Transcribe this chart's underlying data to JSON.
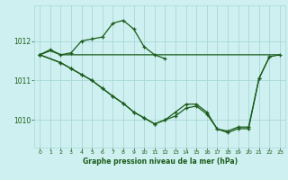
{
  "title": "Graphe pression niveau de la mer (hPa)",
  "bg_color": "#cff0f0",
  "grid_color": "#a8d8d8",
  "line_color": "#1a5c1a",
  "ylim": [
    1009.3,
    1012.9
  ],
  "yticks": [
    1010,
    1011,
    1012
  ],
  "xticks": [
    0,
    1,
    2,
    3,
    4,
    5,
    6,
    7,
    8,
    9,
    10,
    11,
    12,
    13,
    14,
    15,
    16,
    17,
    18,
    19,
    20,
    21,
    22,
    23
  ],
  "line1": {
    "x": [
      0,
      1,
      2,
      3,
      4,
      5,
      6,
      7,
      8,
      9,
      10,
      11,
      12,
      13,
      14,
      15,
      16,
      17,
      18,
      19,
      20,
      21,
      22,
      23
    ],
    "y": [
      1011.65,
      1011.75,
      1011.65,
      1011.65,
      1011.65,
      1011.65,
      1011.65,
      1011.65,
      1011.65,
      1011.65,
      1011.65,
      1011.65,
      1011.65,
      1011.65,
      1011.65,
      1011.65,
      1011.65,
      1011.65,
      1011.65,
      1011.65,
      1011.65,
      1011.65,
      1011.65,
      1011.65
    ],
    "markers": false
  },
  "line2": {
    "x": [
      0,
      1,
      2,
      3,
      4,
      5,
      6,
      7,
      8,
      9,
      10,
      11,
      12
    ],
    "y": [
      1011.65,
      1011.78,
      1011.65,
      1011.7,
      1012.0,
      1012.05,
      1012.1,
      1012.45,
      1012.52,
      1012.3,
      1011.85,
      1011.65,
      1011.55
    ],
    "markers": true
  },
  "line3": {
    "x": [
      0,
      2,
      3,
      4,
      5,
      6,
      7,
      8,
      9,
      10,
      11,
      12,
      13,
      14,
      15,
      16,
      17,
      18,
      19,
      20,
      21,
      22
    ],
    "y": [
      1011.65,
      1011.45,
      1011.3,
      1011.15,
      1011.0,
      1010.8,
      1010.6,
      1010.42,
      1010.2,
      1010.05,
      1009.9,
      1010.0,
      1010.1,
      1010.3,
      1010.35,
      1010.15,
      1009.77,
      1009.72,
      1009.82,
      1009.82,
      1011.05,
      1011.6
    ],
    "markers": true
  },
  "line4": {
    "x": [
      0,
      2,
      3,
      4,
      5,
      6,
      7,
      8,
      9,
      10,
      11,
      12,
      13,
      14,
      15,
      16,
      17,
      18,
      19,
      20,
      21,
      22,
      23
    ],
    "y": [
      1011.65,
      1011.45,
      1011.3,
      1011.15,
      1011.0,
      1010.8,
      1010.6,
      1010.42,
      1010.2,
      1010.05,
      1009.9,
      1010.0,
      1010.2,
      1010.4,
      1010.4,
      1010.2,
      1009.77,
      1009.68,
      1009.78,
      1009.78,
      1011.05,
      1011.6,
      1011.65
    ],
    "markers": true
  }
}
